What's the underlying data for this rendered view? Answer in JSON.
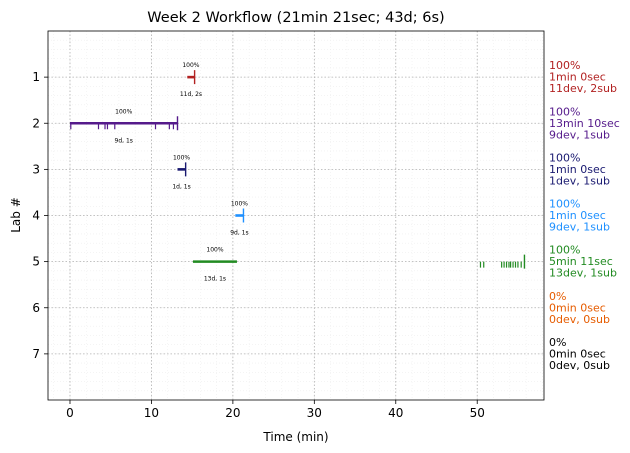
{
  "chart_data": {
    "type": "timeline",
    "title": "Week 2 Workflow (21min 21sec; 43d; 6s)",
    "xlabel": "Time (min)",
    "ylabel": "Lab #",
    "xlim": [
      -2.7,
      58.2
    ],
    "ylim": [
      8.0,
      0.0
    ],
    "xticks": [
      0,
      10,
      20,
      30,
      40,
      50
    ],
    "yticks": [
      1,
      2,
      3,
      4,
      5,
      6,
      7
    ],
    "grid": true,
    "labs": [
      {
        "lab": 1,
        "color": "#b22222",
        "bar": [
          14.4,
          15.3
        ],
        "end_mark": 15.3,
        "ticks": [],
        "pct_label": "100%",
        "count_label": "11d, 2s",
        "stats": [
          "100%",
          "1min 0sec",
          "11dev, 2sub"
        ]
      },
      {
        "lab": 2,
        "color": "#551a8b",
        "bar": [
          0.0,
          13.2
        ],
        "end_mark": 13.2,
        "ticks": [
          0.1,
          3.5,
          4.3,
          4.6,
          5.5,
          10.5,
          12.2,
          12.7
        ],
        "pct_label": "100%",
        "count_label": "9d, 1s",
        "stats": [
          "100%",
          "13min 10sec",
          "9dev, 1sub"
        ]
      },
      {
        "lab": 3,
        "color": "#191970",
        "bar": [
          13.2,
          14.2
        ],
        "end_mark": 14.2,
        "ticks": [],
        "pct_label": "100%",
        "count_label": "1d, 1s",
        "stats": [
          "100%",
          "1min 0sec",
          "1dev, 1sub"
        ]
      },
      {
        "lab": 4,
        "color": "#1e90ff",
        "bar": [
          20.3,
          21.3
        ],
        "end_mark": 21.3,
        "ticks": [],
        "pct_label": "100%",
        "count_label": "9d, 1s",
        "stats": [
          "100%",
          "1min 0sec",
          "9dev, 1sub"
        ]
      },
      {
        "lab": 5,
        "color": "#228b22",
        "bar": [
          15.1,
          20.5
        ],
        "end_mark": 55.8,
        "ticks": [
          50.4,
          50.8,
          53.0,
          53.3,
          53.6,
          53.9,
          54.1,
          54.4,
          54.7,
          55.0,
          55.4
        ],
        "pct_label": "100%",
        "count_label": "13d, 1s",
        "stats": [
          "100%",
          "5min 11sec",
          "13dev, 1sub"
        ]
      },
      {
        "lab": 6,
        "color": "#e65c00",
        "bar": null,
        "end_mark": null,
        "ticks": [],
        "pct_label": "",
        "count_label": "",
        "stats": [
          "0%",
          "0min 0sec",
          "0dev, 0sub"
        ]
      },
      {
        "lab": 7,
        "color": "#000000",
        "bar": null,
        "end_mark": null,
        "ticks": [],
        "pct_label": "",
        "count_label": "",
        "stats": [
          "0%",
          "0min 0sec",
          "0dev, 0sub"
        ]
      }
    ]
  }
}
